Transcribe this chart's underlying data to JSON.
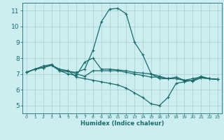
{
  "xlabel": "Humidex (Indice chaleur)",
  "bg_color": "#cceef0",
  "grid_color": "#aad4d8",
  "line_color": "#1a6b6b",
  "xlim": [
    -0.5,
    23.5
  ],
  "ylim": [
    4.5,
    11.5
  ],
  "xticks": [
    0,
    1,
    2,
    3,
    4,
    5,
    6,
    7,
    8,
    9,
    10,
    11,
    12,
    13,
    14,
    15,
    16,
    17,
    18,
    19,
    20,
    21,
    22,
    23
  ],
  "yticks": [
    5,
    6,
    7,
    8,
    9,
    10,
    11
  ],
  "lines": [
    {
      "x": [
        0,
        1,
        2,
        3,
        4,
        5,
        6,
        7,
        8,
        9,
        10,
        11,
        12,
        13,
        14,
        15,
        16,
        17,
        18,
        19,
        20,
        21,
        22,
        23
      ],
      "y": [
        7.1,
        7.3,
        7.4,
        7.55,
        7.2,
        7.15,
        7.1,
        7.3,
        8.5,
        10.3,
        11.1,
        11.15,
        10.8,
        9.0,
        8.2,
        7.0,
        6.7,
        6.7,
        6.8,
        6.6,
        6.7,
        6.8,
        6.7,
        6.65
      ]
    },
    {
      "x": [
        0,
        1,
        2,
        3,
        4,
        5,
        6,
        7,
        8,
        9,
        10,
        11,
        12,
        13,
        14,
        15,
        16,
        17,
        18,
        19,
        20,
        21,
        22,
        23
      ],
      "y": [
        7.1,
        7.3,
        7.5,
        7.6,
        7.2,
        7.0,
        6.9,
        7.75,
        8.0,
        7.3,
        7.3,
        7.25,
        7.2,
        7.1,
        7.05,
        7.0,
        6.85,
        6.7,
        6.7,
        6.6,
        6.55,
        6.75,
        6.7,
        6.65
      ]
    },
    {
      "x": [
        0,
        1,
        2,
        3,
        4,
        5,
        6,
        7,
        8,
        9,
        10,
        11,
        12,
        13,
        14,
        15,
        16,
        17,
        18,
        19,
        20,
        21,
        22,
        23
      ],
      "y": [
        7.1,
        7.3,
        7.4,
        7.55,
        7.2,
        7.2,
        7.0,
        6.85,
        7.2,
        7.2,
        7.2,
        7.2,
        7.1,
        7.0,
        6.9,
        6.8,
        6.8,
        6.7,
        6.7,
        6.6,
        6.55,
        6.75,
        6.7,
        6.65
      ]
    },
    {
      "x": [
        0,
        1,
        2,
        3,
        4,
        5,
        6,
        7,
        8,
        9,
        10,
        11,
        12,
        13,
        14,
        15,
        16,
        17,
        18,
        19,
        20,
        21,
        22,
        23
      ],
      "y": [
        7.1,
        7.3,
        7.4,
        7.55,
        7.3,
        7.2,
        6.8,
        6.7,
        6.6,
        6.5,
        6.4,
        6.3,
        6.1,
        5.8,
        5.5,
        5.1,
        5.0,
        5.5,
        6.4,
        6.5,
        6.6,
        6.85,
        6.7,
        6.65
      ]
    }
  ]
}
